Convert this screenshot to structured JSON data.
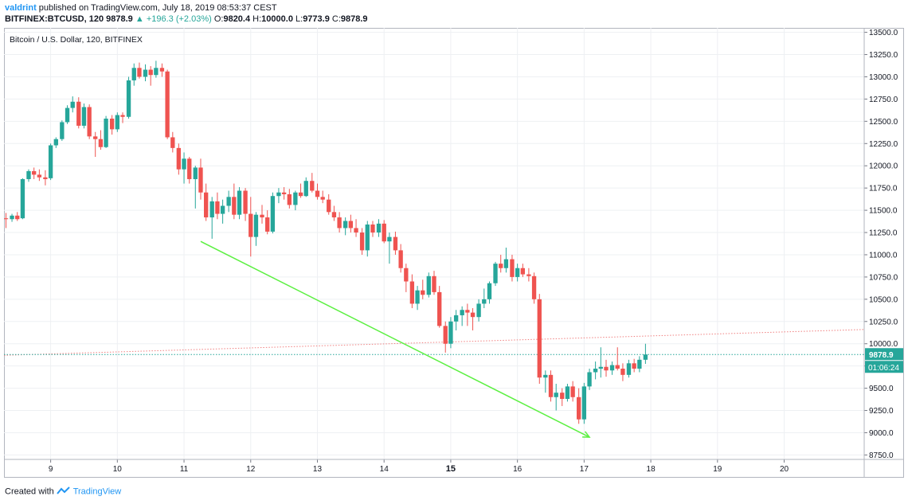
{
  "header": {
    "author": "valdrint",
    "published": "published on TradingView.com, July 18, 2019 08:53:37 CEST",
    "symbol": "BITFINEX:BTCUSD, 120",
    "last": "9878.9",
    "change_arrow": "▲",
    "change": "+196.3 (+2.03%)",
    "o_label": "O:",
    "o_val": "9820.4",
    "h_label": "H:",
    "h_val": "10000.0",
    "l_label": "L:",
    "l_val": "9773.9",
    "c_label": "C:",
    "c_val": "9878.9"
  },
  "chart_title": "Bitcoin / U.S. Dollar, 120, BITFINEX",
  "footer": {
    "created_with": "Created with",
    "brand": "TradingView"
  },
  "colors": {
    "up": "#26a69a",
    "down": "#ef5350",
    "trendline": "#5cf042",
    "resistance": "#f08080",
    "price_line": "#26a69a"
  },
  "chart_data": {
    "type": "candlestick",
    "title": "Bitcoin / U.S. Dollar, 120, BITFINEX",
    "ylim": [
      8700,
      13550
    ],
    "xlim": [
      8.3,
      21.2
    ],
    "y_ticks": [
      8750,
      9000,
      9250,
      9500,
      9750,
      10000,
      10250,
      10500,
      10750,
      11000,
      11250,
      11500,
      11750,
      12000,
      12250,
      12500,
      12750,
      13000,
      13250,
      13500
    ],
    "y_tick_labels": [
      "8750.0",
      "9000.0",
      "9250.0",
      "9500.0",
      "9750.0",
      "10000.0",
      "10250.0",
      "10500.0",
      "10750.0",
      "11000.0",
      "11250.0",
      "11500.0",
      "11750.0",
      "12000.0",
      "12250.0",
      "12500.0",
      "12750.0",
      "13000.0",
      "13250.0",
      "13500.0"
    ],
    "x_ticks": [
      9,
      10,
      11,
      12,
      13,
      14,
      15,
      16,
      17,
      18,
      19,
      20
    ],
    "x_tick_labels": [
      "9",
      "10",
      "11",
      "12",
      "13",
      "14",
      "15",
      "16",
      "17",
      "18",
      "19",
      "20"
    ],
    "x_bold": [
      15
    ],
    "price_label": "9878.9",
    "countdown_label": "01:06:24",
    "current_price": 9878.9,
    "candles": [
      [
        8.33,
        11410,
        11470,
        11300,
        11400
      ],
      [
        8.42,
        11400,
        11460,
        11370,
        11440
      ],
      [
        8.5,
        11440,
        11480,
        11380,
        11400
      ],
      [
        8.58,
        11410,
        11860,
        11400,
        11850
      ],
      [
        8.67,
        11850,
        11960,
        11820,
        11940
      ],
      [
        8.75,
        11940,
        11980,
        11850,
        11900
      ],
      [
        8.83,
        11900,
        11960,
        11830,
        11870
      ],
      [
        8.92,
        11870,
        11950,
        11780,
        11850
      ],
      [
        9.0,
        11860,
        12250,
        11840,
        12230
      ],
      [
        9.08,
        12230,
        12320,
        12200,
        12300
      ],
      [
        9.17,
        12300,
        12510,
        12280,
        12490
      ],
      [
        9.25,
        12490,
        12680,
        12470,
        12650
      ],
      [
        9.33,
        12650,
        12780,
        12600,
        12720
      ],
      [
        9.42,
        12720,
        12770,
        12420,
        12450
      ],
      [
        9.5,
        12450,
        12700,
        12420,
        12660
      ],
      [
        9.58,
        12660,
        12690,
        12300,
        12330
      ],
      [
        9.67,
        12330,
        12380,
        12100,
        12300
      ],
      [
        9.75,
        12300,
        12400,
        12180,
        12210
      ],
      [
        9.83,
        12210,
        12560,
        12200,
        12530
      ],
      [
        9.92,
        12530,
        12570,
        12350,
        12410
      ],
      [
        10.0,
        12410,
        12600,
        12380,
        12570
      ],
      [
        10.08,
        12570,
        12600,
        12480,
        12550
      ],
      [
        10.17,
        12550,
        13000,
        12530,
        12960
      ],
      [
        10.25,
        12960,
        13150,
        12900,
        13100
      ],
      [
        10.33,
        13100,
        13160,
        12980,
        13000
      ],
      [
        10.42,
        13000,
        13140,
        12950,
        13080
      ],
      [
        10.5,
        13080,
        13120,
        12900,
        13020
      ],
      [
        10.58,
        13020,
        13180,
        12990,
        13100
      ],
      [
        10.67,
        13100,
        13150,
        13000,
        13060
      ],
      [
        10.75,
        13060,
        13080,
        12300,
        12320
      ],
      [
        10.83,
        12320,
        12380,
        12150,
        12200
      ],
      [
        10.92,
        12200,
        12250,
        11900,
        11960
      ],
      [
        11.0,
        11960,
        12150,
        11800,
        12080
      ],
      [
        11.08,
        12080,
        12100,
        11800,
        11850
      ],
      [
        11.17,
        11850,
        12000,
        11520,
        11980
      ],
      [
        11.25,
        11980,
        12080,
        11620,
        11700
      ],
      [
        11.33,
        11700,
        11800,
        11380,
        11420
      ],
      [
        11.42,
        11420,
        11650,
        11180,
        11600
      ],
      [
        11.5,
        11600,
        11700,
        11400,
        11460
      ],
      [
        11.58,
        11460,
        11620,
        11350,
        11550
      ],
      [
        11.67,
        11550,
        11720,
        11480,
        11650
      ],
      [
        11.75,
        11650,
        11800,
        11400,
        11450
      ],
      [
        11.83,
        11450,
        11760,
        11400,
        11720
      ],
      [
        11.92,
        11720,
        11750,
        11380,
        11460
      ],
      [
        12.0,
        11460,
        11650,
        10980,
        11200
      ],
      [
        12.08,
        11200,
        11480,
        11100,
        11450
      ],
      [
        12.17,
        11450,
        11560,
        11350,
        11420
      ],
      [
        12.25,
        11420,
        11500,
        11230,
        11260
      ],
      [
        12.33,
        11260,
        11700,
        11240,
        11660
      ],
      [
        12.42,
        11660,
        11750,
        11580,
        11700
      ],
      [
        12.5,
        11700,
        11760,
        11620,
        11680
      ],
      [
        12.58,
        11680,
        11740,
        11520,
        11560
      ],
      [
        12.67,
        11560,
        11720,
        11500,
        11700
      ],
      [
        12.75,
        11700,
        11800,
        11640,
        11660
      ],
      [
        12.83,
        11660,
        11870,
        11650,
        11830
      ],
      [
        12.92,
        11830,
        11920,
        11700,
        11720
      ],
      [
        13.0,
        11720,
        11800,
        11620,
        11650
      ],
      [
        13.08,
        11650,
        11720,
        11580,
        11620
      ],
      [
        13.17,
        11620,
        11680,
        11450,
        11480
      ],
      [
        13.25,
        11480,
        11550,
        11380,
        11420
      ],
      [
        13.33,
        11420,
        11480,
        11250,
        11300
      ],
      [
        13.42,
        11300,
        11420,
        11220,
        11380
      ],
      [
        13.5,
        11380,
        11450,
        11250,
        11300
      ],
      [
        13.58,
        11300,
        11400,
        11200,
        11250
      ],
      [
        13.67,
        11250,
        11300,
        11000,
        11050
      ],
      [
        13.75,
        11050,
        11380,
        10980,
        11340
      ],
      [
        13.83,
        11340,
        11380,
        11200,
        11250
      ],
      [
        13.92,
        11250,
        11400,
        11200,
        11350
      ],
      [
        14.0,
        11350,
        11390,
        11130,
        11150
      ],
      [
        14.08,
        11150,
        11250,
        10900,
        11200
      ],
      [
        14.17,
        11200,
        11260,
        11000,
        11050
      ],
      [
        14.25,
        11050,
        11120,
        10800,
        10850
      ],
      [
        14.33,
        10850,
        10900,
        10580,
        10700
      ],
      [
        14.42,
        10700,
        10780,
        10400,
        10450
      ],
      [
        14.5,
        10450,
        10650,
        10380,
        10600
      ],
      [
        14.58,
        10600,
        10720,
        10500,
        10550
      ],
      [
        14.67,
        10550,
        10800,
        10520,
        10760
      ],
      [
        14.75,
        10760,
        10820,
        10550,
        10580
      ],
      [
        14.83,
        10580,
        10650,
        10180,
        10200
      ],
      [
        14.92,
        10200,
        10250,
        9900,
        10000
      ],
      [
        15.0,
        10000,
        10300,
        9950,
        10250
      ],
      [
        15.08,
        10250,
        10380,
        10150,
        10320
      ],
      [
        15.17,
        10320,
        10420,
        10200,
        10380
      ],
      [
        15.25,
        10380,
        10450,
        10200,
        10350
      ],
      [
        15.33,
        10350,
        10400,
        10150,
        10300
      ],
      [
        15.42,
        10300,
        10500,
        10250,
        10450
      ],
      [
        15.5,
        10450,
        10620,
        10400,
        10500
      ],
      [
        15.58,
        10500,
        10700,
        10450,
        10680
      ],
      [
        15.67,
        10680,
        10920,
        10650,
        10900
      ],
      [
        15.75,
        10900,
        11000,
        10800,
        10850
      ],
      [
        15.83,
        10850,
        11080,
        10800,
        10950
      ],
      [
        15.92,
        10950,
        11000,
        10700,
        10750
      ],
      [
        16.0,
        10750,
        10900,
        10700,
        10850
      ],
      [
        16.08,
        10850,
        10900,
        10750,
        10780
      ],
      [
        16.17,
        10780,
        10850,
        10700,
        10760
      ],
      [
        16.25,
        10760,
        10800,
        10450,
        10500
      ],
      [
        16.33,
        10500,
        10560,
        9550,
        9620
      ],
      [
        16.42,
        9620,
        9700,
        9450,
        9650
      ],
      [
        16.5,
        9650,
        9700,
        9350,
        9400
      ],
      [
        16.58,
        9400,
        9550,
        9250,
        9450
      ],
      [
        16.67,
        9450,
        9500,
        9300,
        9380
      ],
      [
        16.75,
        9380,
        9550,
        9350,
        9520
      ],
      [
        16.83,
        9520,
        9580,
        9350,
        9400
      ],
      [
        16.92,
        9400,
        9500,
        9100,
        9150
      ],
      [
        17.0,
        9150,
        9560,
        9100,
        9520
      ],
      [
        17.08,
        9520,
        9720,
        9480,
        9680
      ],
      [
        17.17,
        9680,
        9800,
        9600,
        9720
      ],
      [
        17.25,
        9720,
        9960,
        9620,
        9740
      ],
      [
        17.33,
        9740,
        9820,
        9630,
        9700
      ],
      [
        17.42,
        9700,
        9800,
        9650,
        9760
      ],
      [
        17.5,
        9760,
        9960,
        9700,
        9720
      ],
      [
        17.58,
        9720,
        9780,
        9580,
        9650
      ],
      [
        17.67,
        9650,
        9820,
        9620,
        9780
      ],
      [
        17.75,
        9780,
        9830,
        9680,
        9720
      ],
      [
        17.83,
        9720,
        9860,
        9680,
        9820
      ],
      [
        17.92,
        9820,
        10000,
        9773.9,
        9878.9
      ]
    ],
    "trendline": {
      "from": [
        11.25,
        11150
      ],
      "to": [
        17.08,
        8950
      ],
      "arrow": true
    },
    "resistance_line": {
      "from": [
        8.3,
        9870
      ],
      "to": [
        21.2,
        10160
      ]
    }
  }
}
